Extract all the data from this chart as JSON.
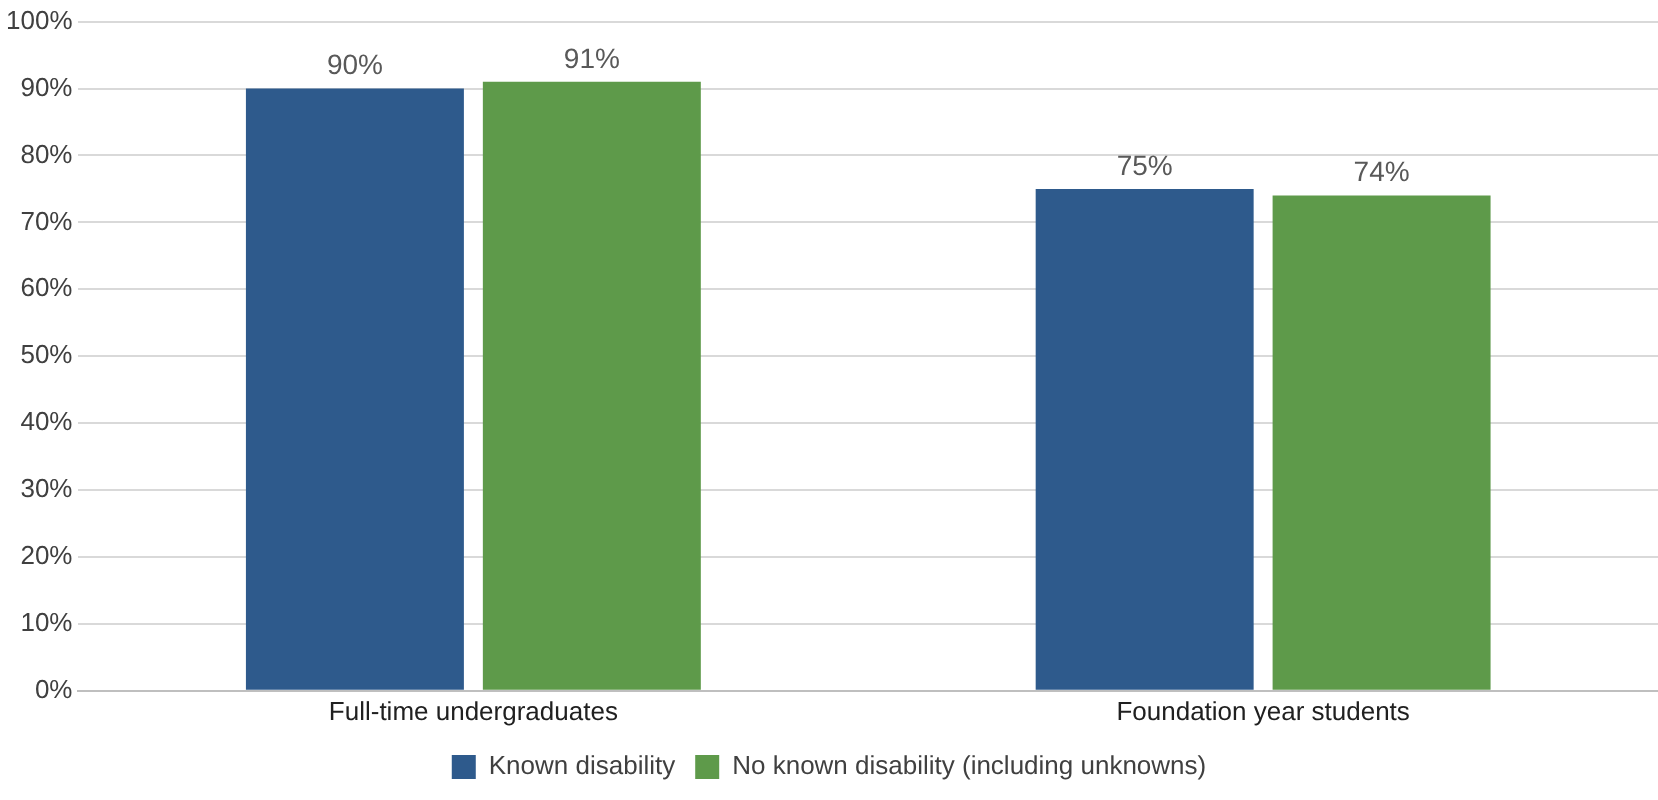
{
  "chart_data": {
    "type": "bar",
    "categories": [
      "Full-time undergraduates",
      "Foundation year students"
    ],
    "series": [
      {
        "name": "Known disability",
        "color": "#2e5a8c",
        "values": [
          90,
          75
        ],
        "value_labels": [
          "90%",
          "75%"
        ]
      },
      {
        "name": "No known disability (including unknowns)",
        "color": "#5e9a4a",
        "values": [
          91,
          74
        ],
        "value_labels": [
          "91%",
          "74%"
        ]
      }
    ],
    "ylim": [
      0,
      100
    ],
    "yticks": [
      {
        "value": 0,
        "label": "0%"
      },
      {
        "value": 10,
        "label": "10%"
      },
      {
        "value": 20,
        "label": "20%"
      },
      {
        "value": 30,
        "label": "30%"
      },
      {
        "value": 40,
        "label": "40%"
      },
      {
        "value": 50,
        "label": "50%"
      },
      {
        "value": 60,
        "label": "60%"
      },
      {
        "value": 70,
        "label": "70%"
      },
      {
        "value": 80,
        "label": "80%"
      },
      {
        "value": 90,
        "label": "90%"
      },
      {
        "value": 100,
        "label": "100%"
      }
    ],
    "grid": "y",
    "legend": "bottom"
  }
}
